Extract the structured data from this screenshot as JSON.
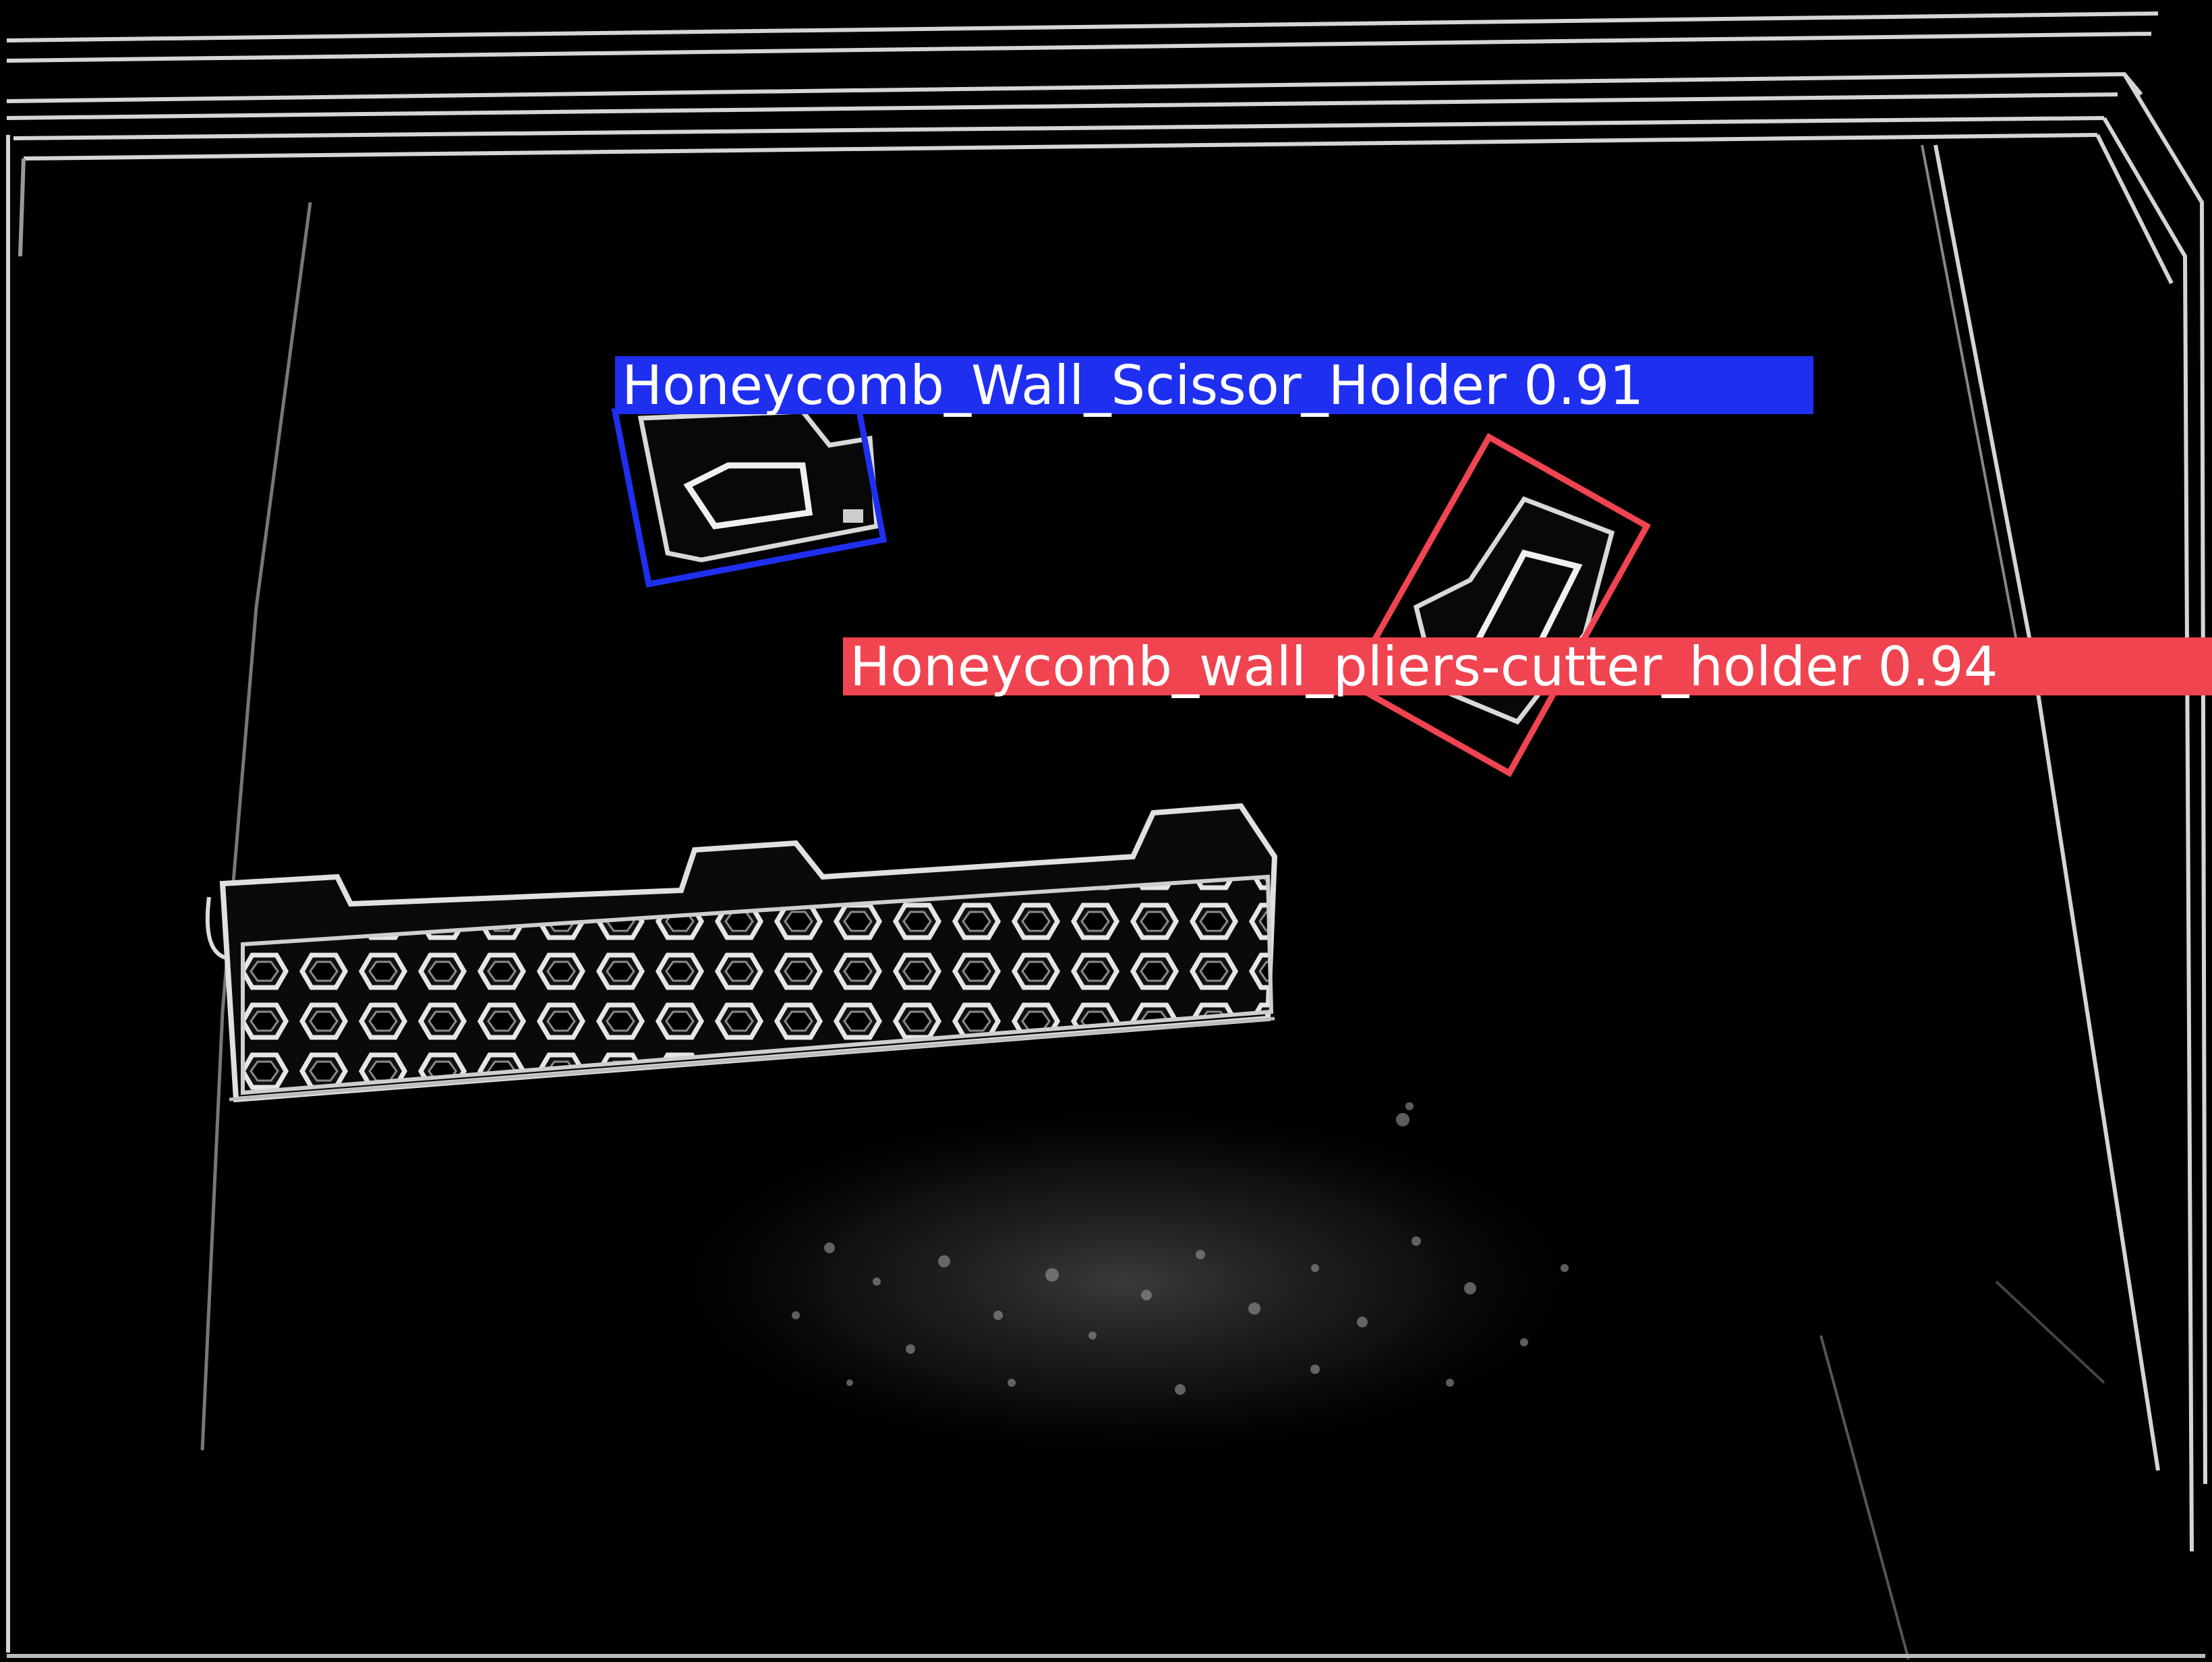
{
  "image": {
    "kind": "edge-filtered camera frame with object-detection overlays",
    "background_color": "#000000",
    "edge_color": "#d8d8d8"
  },
  "detections": [
    {
      "label": "Honeycomb_Wall_Scissor_Holder",
      "score": "0.91",
      "color": "#1f2ff0",
      "shape": "rotated-box"
    },
    {
      "label": "Honeycomb_wall_pliers-cutter_holder",
      "score": "0.94",
      "color": "#f04450",
      "shape": "rotated-box"
    }
  ]
}
